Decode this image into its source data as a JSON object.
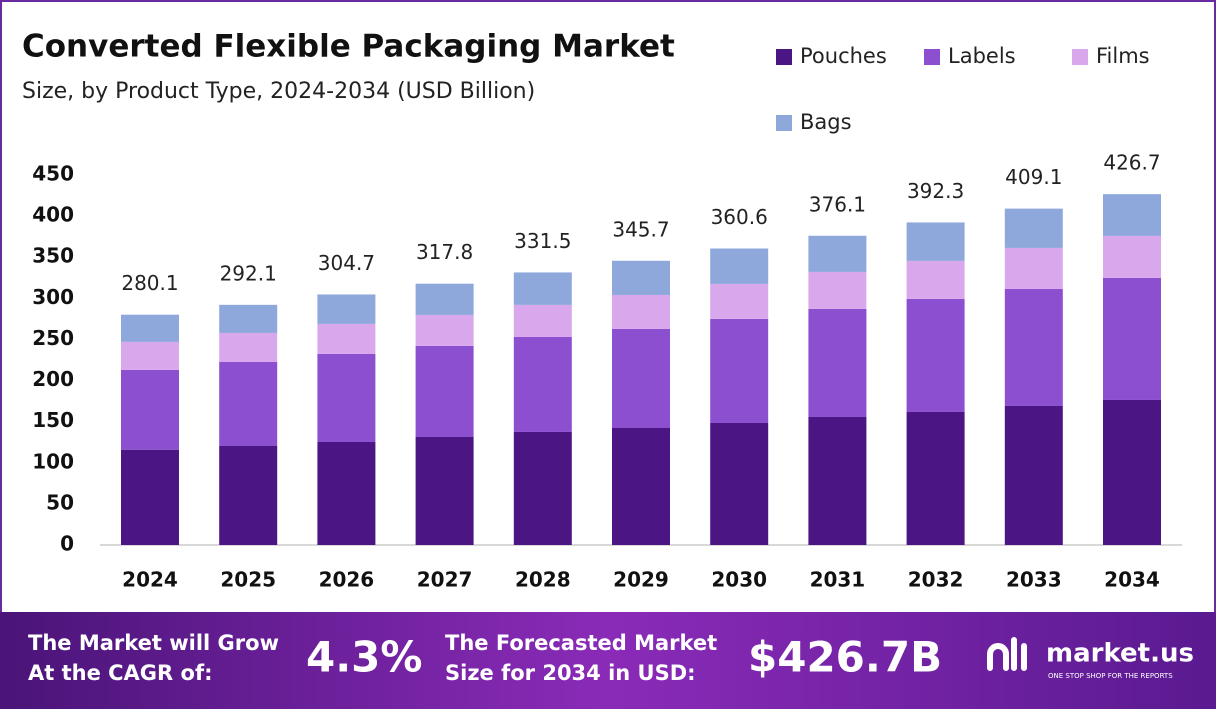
{
  "chart_data": {
    "type": "stacked-bar",
    "title": "Converted Flexible Packaging Market",
    "subtitle": "Size, by Product Type, 2024-2034 (USD Billion)",
    "categories": [
      "2024",
      "2025",
      "2026",
      "2027",
      "2028",
      "2029",
      "2030",
      "2031",
      "2032",
      "2033",
      "2034"
    ],
    "series": [
      {
        "name": "Pouches",
        "color": "#4b1683",
        "values": [
          115.9,
          120.4,
          125.3,
          131.4,
          137.5,
          142.3,
          148.4,
          155.7,
          161.8,
          169.1,
          176.4
        ]
      },
      {
        "name": "Labels",
        "color": "#8b4fd0",
        "values": [
          97,
          102.2,
          107.1,
          110.7,
          115.5,
          120.5,
          126.6,
          131.4,
          137.5,
          142.3,
          148.4
        ]
      },
      {
        "name": "Films",
        "color": "#d9a8ec",
        "values": [
          34.1,
          35.3,
          36.5,
          37.7,
          39,
          41.3,
          42.5,
          45,
          46.2,
          49.9,
          51.1
        ]
      },
      {
        "name": "Bags",
        "color": "#8fa8dc",
        "values": [
          33.1,
          34.2,
          35.8,
          38,
          39.5,
          41.6,
          43.1,
          44,
          46.8,
          47.8,
          50.8
        ]
      }
    ],
    "totals": [
      280.1,
      292.1,
      304.7,
      317.8,
      331.5,
      345.7,
      360.6,
      376.1,
      392.3,
      409.1,
      426.7
    ],
    "ylim": [
      0,
      450
    ],
    "yticks": [
      0,
      50,
      100,
      150,
      200,
      250,
      300,
      350,
      400,
      450
    ]
  },
  "footer": {
    "cagr_label": [
      "The Market will Grow",
      "At the CAGR of:"
    ],
    "cagr_value": "4.3%",
    "forecast_label": [
      "The Forecasted Market",
      "Size for 2034 in USD:"
    ],
    "forecast_value": "$426.7B",
    "logo": "market.us",
    "tagline": "ONE STOP SHOP FOR THE REPORTS"
  }
}
